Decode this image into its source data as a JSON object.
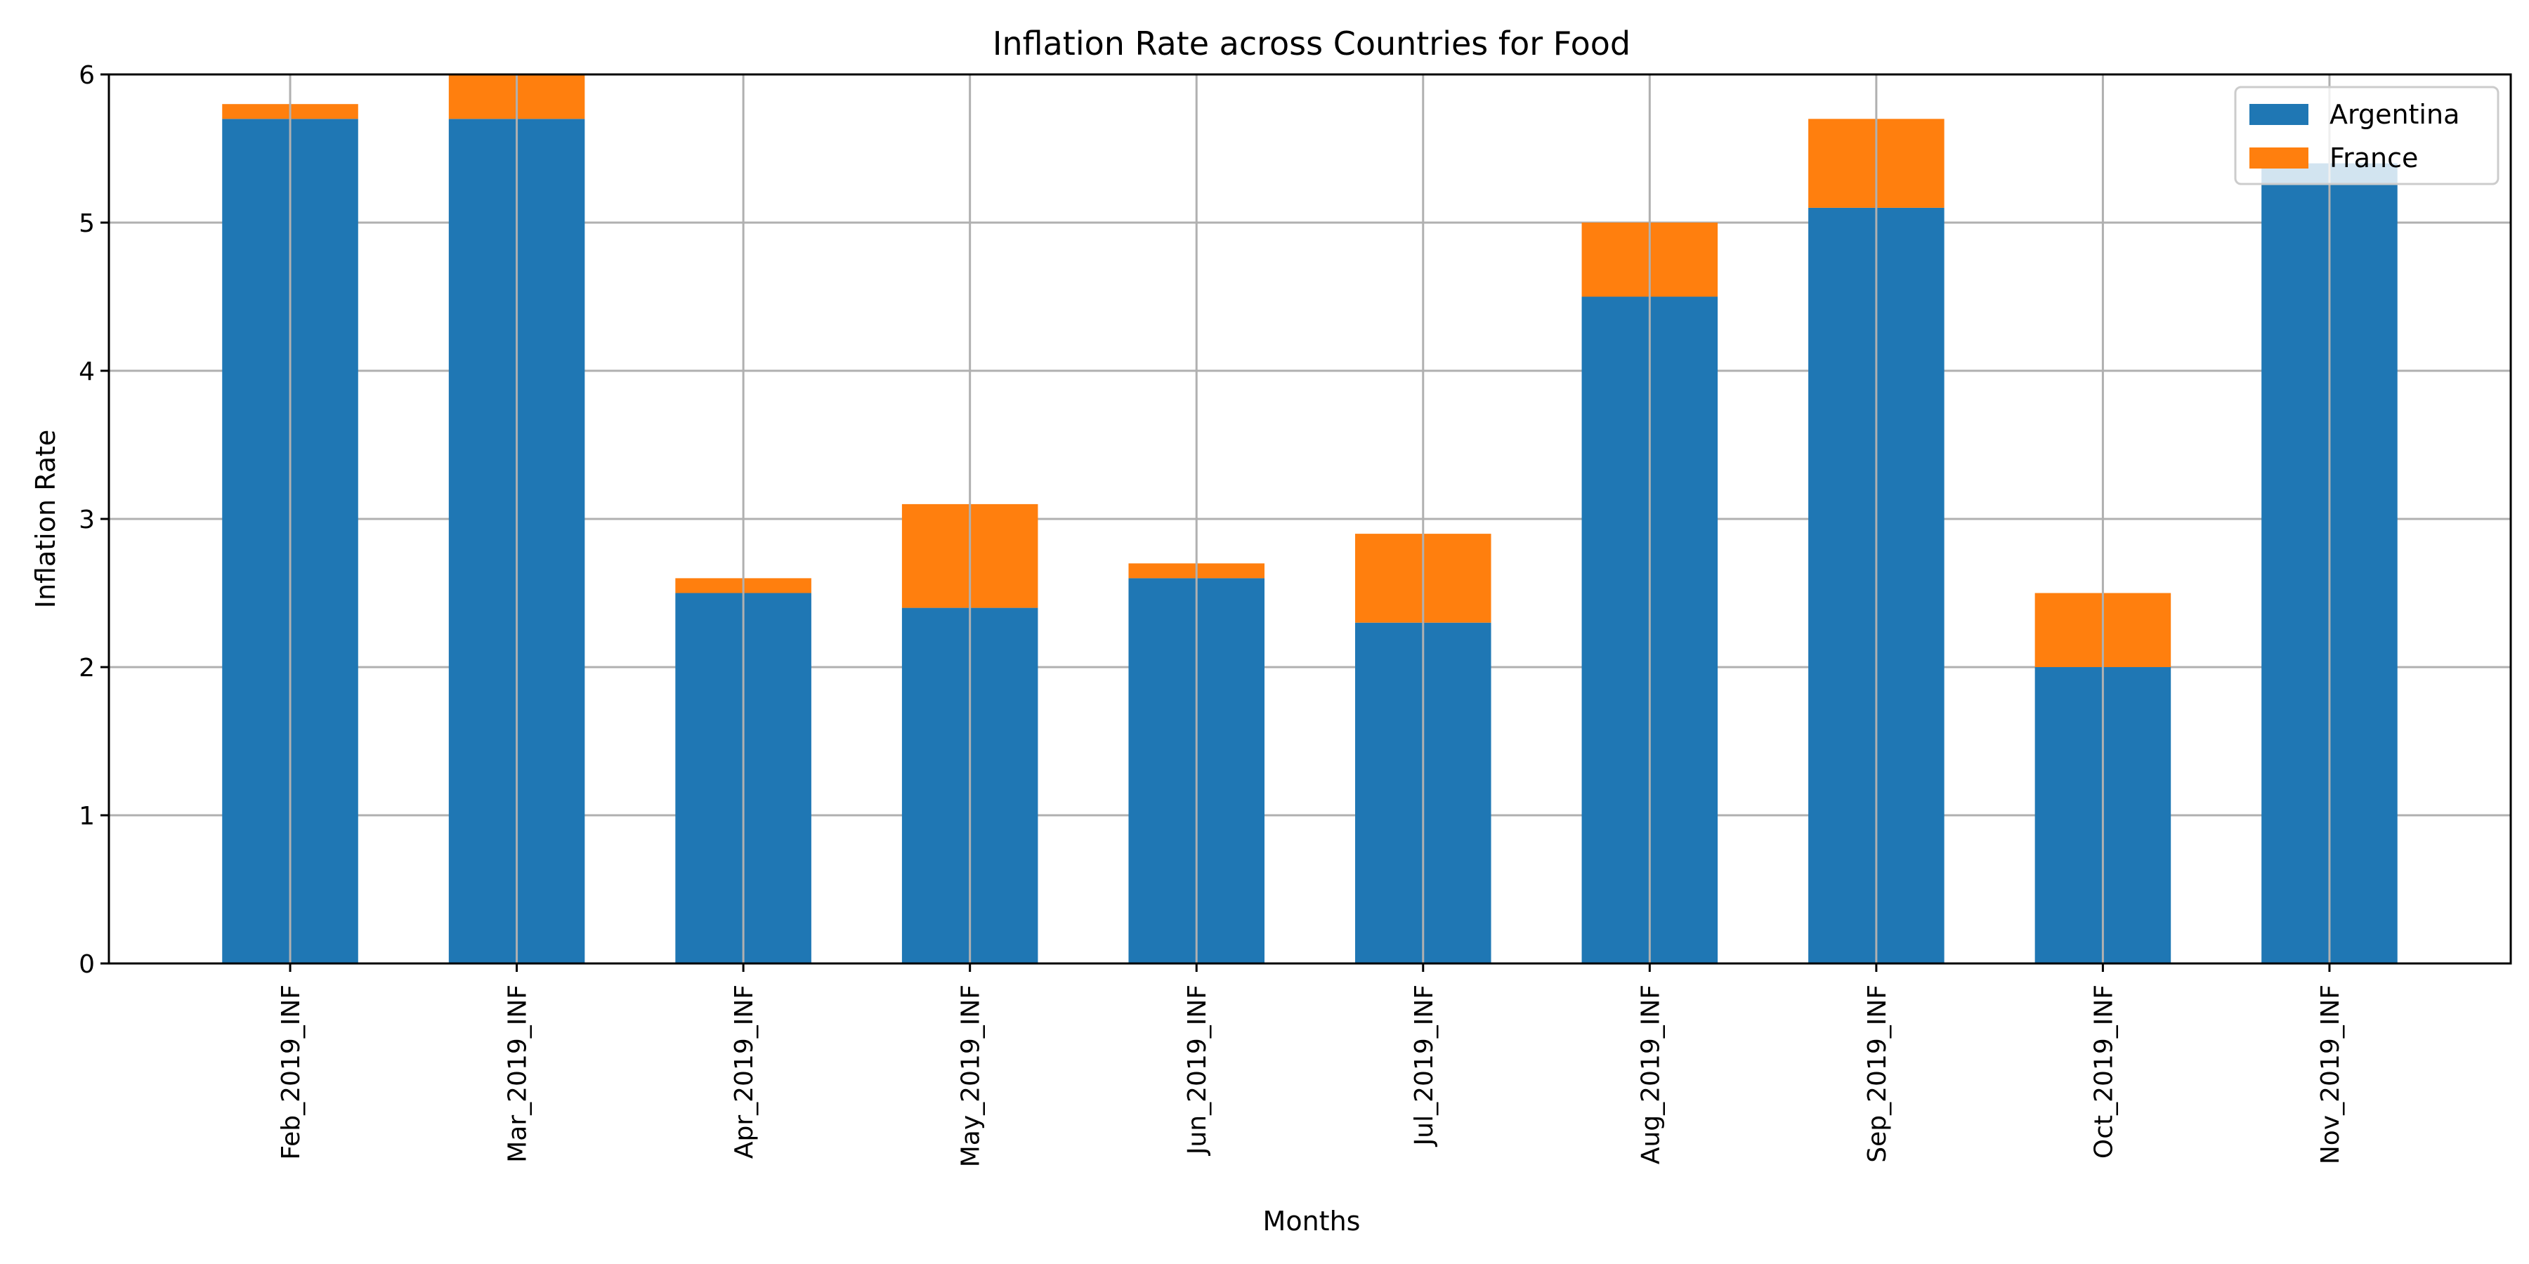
{
  "chart_data": {
    "type": "bar",
    "stacked": true,
    "title": "Inflation Rate across Countries for Food",
    "xlabel": "Months",
    "ylabel": "Inflation Rate",
    "ylim": [
      0,
      6
    ],
    "yticks": [
      "0",
      "1",
      "2",
      "3",
      "4",
      "5",
      "6"
    ],
    "categories": [
      "Feb_2019_INF",
      "Mar_2019_INF",
      "Apr_2019_INF",
      "May_2019_INF",
      "Jun_2019_INF",
      "Jul_2019_INF",
      "Aug_2019_INF",
      "Sep_2019_INF",
      "Oct_2019_INF",
      "Nov_2019_INF"
    ],
    "series": [
      {
        "name": "Argentina",
        "color": "#1f77b4",
        "values": [
          5.7,
          5.7,
          2.5,
          2.4,
          2.6,
          2.3,
          4.5,
          5.1,
          2.0,
          5.4
        ]
      },
      {
        "name": "France",
        "color": "#ff7f0e",
        "values": [
          0.1,
          0.3,
          0.1,
          0.7,
          0.1,
          0.6,
          0.5,
          0.6,
          0.5,
          0.0
        ]
      }
    ],
    "grid": true,
    "legend_position": "top-right"
  }
}
